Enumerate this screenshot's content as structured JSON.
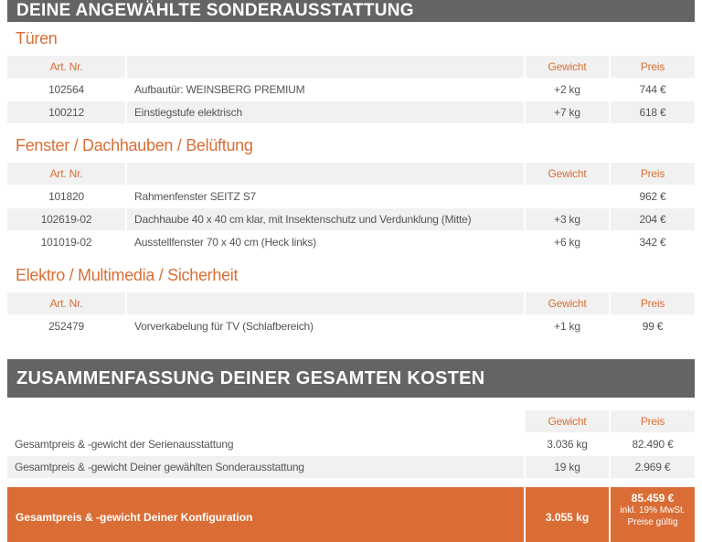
{
  "header": {
    "title": "Deine angewählte Sonderausstattung"
  },
  "columns": {
    "art": "Art. Nr.",
    "weight": "Gewicht",
    "price": "Preis"
  },
  "sections": [
    {
      "title": "Türen",
      "rows": [
        {
          "art": "102564",
          "name": "Aufbautür: WEINSBERG PREMIUM",
          "weight": "+2 kg",
          "price": "744 €"
        },
        {
          "art": "100212",
          "name": "Einstiegstufe elektrisch",
          "weight": "+7 kg",
          "price": "618 €"
        }
      ]
    },
    {
      "title": "Fenster / Dachhauben / Belüftung",
      "rows": [
        {
          "art": "101820",
          "name": "Rahmenfenster SEITZ S7",
          "weight": "",
          "price": "962 €"
        },
        {
          "art": "102619-02",
          "name": "Dachhaube 40 x 40 cm klar, mit Insektenschutz und Verdunklung (Mitte)",
          "weight": "+3 kg",
          "price": "204 €"
        },
        {
          "art": "101019-02",
          "name": "Ausstellfenster 70 x 40 cm (Heck links)",
          "weight": "+6 kg",
          "price": "342 €"
        }
      ]
    },
    {
      "title": "Elektro / Multimedia / Sicherheit",
      "rows": [
        {
          "art": "252479",
          "name": "Vorverkabelung für TV (Schlafbereich)",
          "weight": "+1 kg",
          "price": "99 €"
        }
      ]
    }
  ],
  "summary": {
    "title": "Zusammenfassung deiner gesamten Kosten",
    "rows": [
      {
        "name": "Gesamtpreis & -gewicht der Serienausstattung",
        "weight": "3.036 kg",
        "price": "82.490 €"
      },
      {
        "name": "Gesamtpreis & -gewicht Deiner gewählten Sonderausstattung",
        "weight": "19 kg",
        "price": "2.969 €"
      }
    ],
    "total": {
      "name": "Gesamtpreis & -gewicht Deiner Konfiguration",
      "weight": "3.055 kg",
      "price": "85.459 €",
      "vat": "inkl. 19% MwSt.",
      "note": "Preise gültig"
    }
  },
  "colors": {
    "accent": "#da6d35",
    "bar": "#656364",
    "row": "#f1f1f1"
  }
}
